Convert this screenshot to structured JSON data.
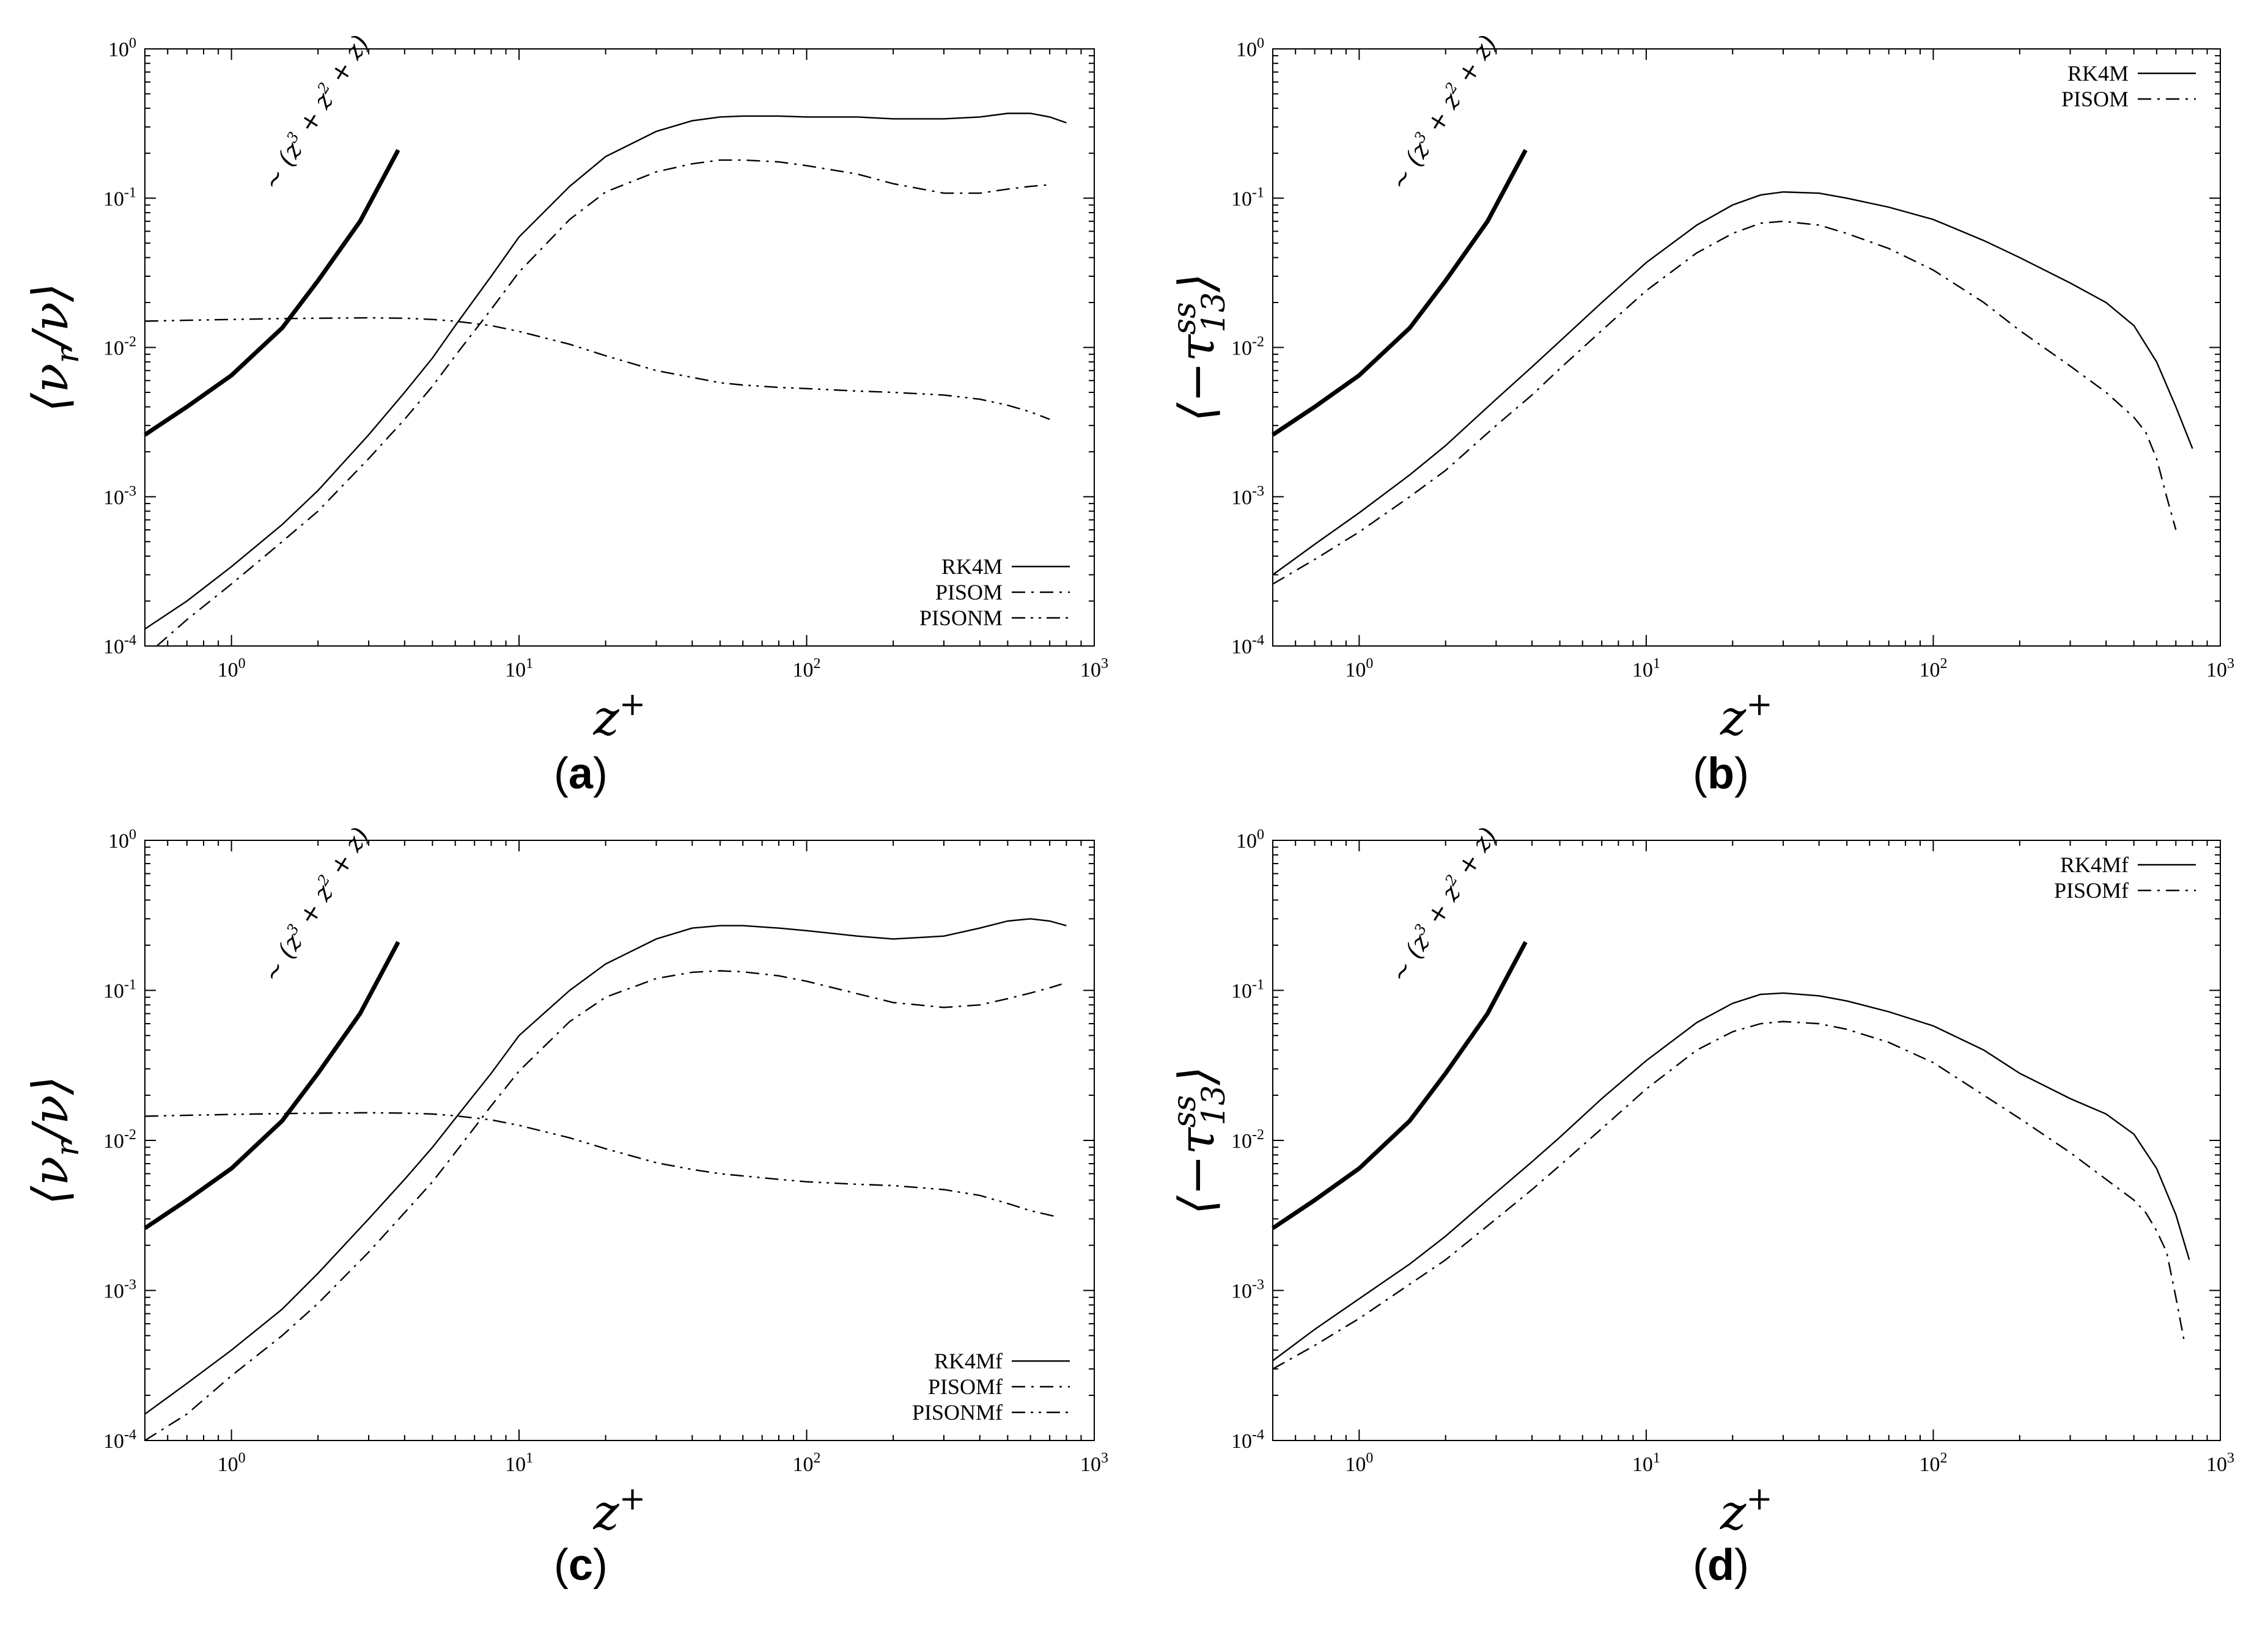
{
  "chart_data": [
    {
      "id": "a",
      "type": "line",
      "panel_label": "a",
      "xscale": "log",
      "yscale": "log",
      "xlim": [
        0.5,
        1000
      ],
      "ylim": [
        0.0001,
        1
      ],
      "xlabel": "z+",
      "xlabel_base": "z",
      "xlabel_sup": "+",
      "ylabel": "⟨νr/ν⟩",
      "ylabel_pre": "⟨ν",
      "ylabel_sub": "r",
      "ylabel_post": "/ν⟩",
      "xticks": [
        {
          "base": "10",
          "exp": "0",
          "value": 1
        },
        {
          "base": "10",
          "exp": "1",
          "value": 10
        },
        {
          "base": "10",
          "exp": "2",
          "value": 100
        },
        {
          "base": "10",
          "exp": "3",
          "value": 1000
        }
      ],
      "yticks": [
        {
          "base": "10",
          "exp": "-4",
          "value": 0.0001
        },
        {
          "base": "10",
          "exp": "-3",
          "value": 0.001
        },
        {
          "base": "10",
          "exp": "-2",
          "value": 0.01
        },
        {
          "base": "10",
          "exp": "-1",
          "value": 0.1
        },
        {
          "base": "10",
          "exp": "0",
          "value": 1
        }
      ],
      "legend_position": "bottom-right",
      "slope": {
        "label_pre": "∼ (z",
        "label_sup1": "3",
        "label_mid": " + z",
        "label_sup2": "2",
        "label_post": " + z)",
        "x": [
          0.5,
          0.7,
          1,
          1.5,
          2,
          2.8,
          3.8
        ],
        "y": [
          0.0026,
          0.004,
          0.0065,
          0.0135,
          0.028,
          0.07,
          0.21
        ]
      },
      "series": [
        {
          "name": "RK4M",
          "style": "solid",
          "x": [
            0.5,
            0.7,
            1,
            1.5,
            2,
            3,
            4,
            5,
            6,
            8,
            10,
            15,
            20,
            30,
            40,
            50,
            60,
            80,
            100,
            150,
            200,
            300,
            400,
            500,
            600,
            700,
            800
          ],
          "y": [
            0.00013,
            0.0002,
            0.00034,
            0.00065,
            0.0011,
            0.0026,
            0.005,
            0.0085,
            0.014,
            0.03,
            0.055,
            0.12,
            0.19,
            0.28,
            0.33,
            0.35,
            0.355,
            0.355,
            0.35,
            0.35,
            0.34,
            0.34,
            0.35,
            0.37,
            0.37,
            0.35,
            0.32
          ]
        },
        {
          "name": "PISOM",
          "style": "dashdot",
          "x": [
            0.55,
            0.7,
            1,
            1.5,
            2,
            3,
            4,
            5,
            6,
            8,
            10,
            15,
            20,
            30,
            40,
            50,
            60,
            80,
            100,
            150,
            200,
            300,
            400,
            500,
            600,
            700
          ],
          "y": [
            0.0001,
            0.00015,
            0.00026,
            0.0005,
            0.0008,
            0.0018,
            0.0033,
            0.0055,
            0.0088,
            0.018,
            0.032,
            0.072,
            0.11,
            0.15,
            0.17,
            0.18,
            0.18,
            0.175,
            0.165,
            0.145,
            0.125,
            0.108,
            0.108,
            0.115,
            0.12,
            0.123
          ]
        },
        {
          "name": "PISONM",
          "style": "dashdotdot",
          "x": [
            0.5,
            0.7,
            1,
            1.5,
            2,
            3,
            4,
            5,
            6,
            8,
            10,
            15,
            20,
            30,
            40,
            50,
            60,
            80,
            100,
            150,
            200,
            300,
            400,
            500,
            600,
            700
          ],
          "y": [
            0.015,
            0.0152,
            0.0154,
            0.0156,
            0.0157,
            0.0158,
            0.0157,
            0.0154,
            0.015,
            0.014,
            0.0128,
            0.0105,
            0.0088,
            0.007,
            0.0063,
            0.0058,
            0.0056,
            0.0054,
            0.0053,
            0.0051,
            0.005,
            0.0048,
            0.0045,
            0.0041,
            0.0037,
            0.0033
          ]
        }
      ]
    },
    {
      "id": "b",
      "type": "line",
      "panel_label": "b",
      "xscale": "log",
      "yscale": "log",
      "xlim": [
        0.5,
        1000
      ],
      "ylim": [
        0.0001,
        1
      ],
      "xlabel": "z+",
      "xlabel_base": "z",
      "xlabel_sup": "+",
      "ylabel": "⟨−τ13ss⟩",
      "ylabel_pre": "⟨−τ",
      "ylabel_sub": "13",
      "ylabel_sup": "ss",
      "ylabel_post": "⟩",
      "xticks": [
        {
          "base": "10",
          "exp": "0",
          "value": 1
        },
        {
          "base": "10",
          "exp": "1",
          "value": 10
        },
        {
          "base": "10",
          "exp": "2",
          "value": 100
        },
        {
          "base": "10",
          "exp": "3",
          "value": 1000
        }
      ],
      "yticks": [
        {
          "base": "10",
          "exp": "-4",
          "value": 0.0001
        },
        {
          "base": "10",
          "exp": "-3",
          "value": 0.001
        },
        {
          "base": "10",
          "exp": "-2",
          "value": 0.01
        },
        {
          "base": "10",
          "exp": "-1",
          "value": 0.1
        },
        {
          "base": "10",
          "exp": "0",
          "value": 1
        }
      ],
      "legend_position": "top-right",
      "slope": {
        "label_pre": "∼ (z",
        "label_sup1": "3",
        "label_mid": " + z",
        "label_sup2": "2",
        "label_post": " + z)",
        "x": [
          0.5,
          0.7,
          1,
          1.5,
          2,
          2.8,
          3.8
        ],
        "y": [
          0.0026,
          0.004,
          0.0065,
          0.0135,
          0.028,
          0.07,
          0.21
        ]
      },
      "series": [
        {
          "name": "RK4M",
          "style": "solid",
          "x": [
            0.5,
            0.7,
            1,
            1.5,
            2,
            3,
            4,
            5,
            7,
            10,
            15,
            20,
            25,
            30,
            40,
            50,
            70,
            100,
            150,
            200,
            300,
            400,
            500,
            600,
            700,
            800
          ],
          "y": [
            0.0003,
            0.00048,
            0.00078,
            0.0014,
            0.0022,
            0.0045,
            0.0074,
            0.011,
            0.02,
            0.037,
            0.066,
            0.09,
            0.105,
            0.11,
            0.108,
            0.1,
            0.087,
            0.072,
            0.052,
            0.04,
            0.027,
            0.02,
            0.014,
            0.008,
            0.004,
            0.0021
          ]
        },
        {
          "name": "PISOM",
          "style": "dashdot",
          "x": [
            0.5,
            0.7,
            1,
            1.5,
            2,
            3,
            4,
            5,
            7,
            10,
            15,
            20,
            25,
            30,
            40,
            50,
            70,
            100,
            150,
            200,
            300,
            400,
            500,
            550,
            600,
            650,
            700
          ],
          "y": [
            0.00026,
            0.00038,
            0.00058,
            0.001,
            0.0015,
            0.003,
            0.0048,
            0.0072,
            0.013,
            0.024,
            0.043,
            0.058,
            0.068,
            0.07,
            0.066,
            0.058,
            0.046,
            0.033,
            0.02,
            0.013,
            0.0075,
            0.005,
            0.0034,
            0.0027,
            0.0018,
            0.001,
            0.0006
          ]
        }
      ]
    },
    {
      "id": "c",
      "type": "line",
      "panel_label": "c",
      "xscale": "log",
      "yscale": "log",
      "xlim": [
        0.5,
        1000
      ],
      "ylim": [
        0.0001,
        1
      ],
      "xlabel": "z+",
      "xlabel_base": "z",
      "xlabel_sup": "+",
      "ylabel": "⟨νr/ν⟩",
      "ylabel_pre": "⟨ν",
      "ylabel_sub": "r",
      "ylabel_post": "/ν⟩",
      "xticks": [
        {
          "base": "10",
          "exp": "0",
          "value": 1
        },
        {
          "base": "10",
          "exp": "1",
          "value": 10
        },
        {
          "base": "10",
          "exp": "2",
          "value": 100
        },
        {
          "base": "10",
          "exp": "3",
          "value": 1000
        }
      ],
      "yticks": [
        {
          "base": "10",
          "exp": "-4",
          "value": 0.0001
        },
        {
          "base": "10",
          "exp": "-3",
          "value": 0.001
        },
        {
          "base": "10",
          "exp": "-2",
          "value": 0.01
        },
        {
          "base": "10",
          "exp": "-1",
          "value": 0.1
        },
        {
          "base": "10",
          "exp": "0",
          "value": 1
        }
      ],
      "legend_position": "bottom-right",
      "slope": {
        "label_pre": "∼ (z",
        "label_sup1": "3",
        "label_mid": " + z",
        "label_sup2": "2",
        "label_post": " + z)",
        "x": [
          0.5,
          0.7,
          1,
          1.5,
          2,
          2.8,
          3.8
        ],
        "y": [
          0.0026,
          0.004,
          0.0065,
          0.0135,
          0.028,
          0.07,
          0.21
        ]
      },
      "series": [
        {
          "name": "RK4Mf",
          "style": "solid",
          "x": [
            0.5,
            0.7,
            1,
            1.5,
            2,
            3,
            4,
            5,
            6,
            8,
            10,
            15,
            20,
            30,
            40,
            50,
            60,
            80,
            100,
            150,
            200,
            300,
            400,
            500,
            600,
            700,
            800
          ],
          "y": [
            0.00015,
            0.00024,
            0.0004,
            0.00075,
            0.0013,
            0.003,
            0.0055,
            0.009,
            0.014,
            0.028,
            0.05,
            0.1,
            0.15,
            0.22,
            0.26,
            0.27,
            0.27,
            0.26,
            0.25,
            0.23,
            0.22,
            0.23,
            0.26,
            0.29,
            0.3,
            0.29,
            0.27
          ]
        },
        {
          "name": "PISOMf",
          "style": "dashdot",
          "x": [
            0.5,
            0.7,
            1,
            1.5,
            2,
            3,
            4,
            5,
            6,
            8,
            10,
            15,
            20,
            30,
            40,
            50,
            60,
            80,
            100,
            150,
            200,
            300,
            400,
            500,
            600,
            700,
            770
          ],
          "y": [
            0.0001,
            0.00015,
            0.00027,
            0.0005,
            0.00082,
            0.0018,
            0.0033,
            0.0053,
            0.0083,
            0.017,
            0.029,
            0.062,
            0.09,
            0.12,
            0.132,
            0.135,
            0.133,
            0.125,
            0.115,
            0.095,
            0.083,
            0.077,
            0.08,
            0.088,
            0.096,
            0.104,
            0.11
          ]
        },
        {
          "name": "PISONMf",
          "style": "dashdotdot",
          "x": [
            0.5,
            0.7,
            1,
            1.5,
            2,
            3,
            4,
            5,
            6,
            8,
            10,
            15,
            20,
            30,
            40,
            50,
            60,
            80,
            100,
            150,
            200,
            300,
            400,
            500,
            600,
            740
          ],
          "y": [
            0.0145,
            0.0147,
            0.0149,
            0.0151,
            0.0152,
            0.0153,
            0.0152,
            0.015,
            0.0146,
            0.0137,
            0.0126,
            0.0104,
            0.0088,
            0.0071,
            0.0064,
            0.006,
            0.0058,
            0.0055,
            0.0053,
            0.0051,
            0.005,
            0.0047,
            0.0043,
            0.0038,
            0.0034,
            0.0031
          ]
        }
      ]
    },
    {
      "id": "d",
      "type": "line",
      "panel_label": "d",
      "xscale": "log",
      "yscale": "log",
      "xlim": [
        0.5,
        1000
      ],
      "ylim": [
        0.0001,
        1
      ],
      "xlabel": "z+",
      "xlabel_base": "z",
      "xlabel_sup": "+",
      "ylabel": "⟨−τ13ss⟩",
      "ylabel_pre": "⟨−τ",
      "ylabel_sub": "13",
      "ylabel_sup": "ss",
      "ylabel_post": "⟩",
      "xticks": [
        {
          "base": "10",
          "exp": "0",
          "value": 1
        },
        {
          "base": "10",
          "exp": "1",
          "value": 10
        },
        {
          "base": "10",
          "exp": "2",
          "value": 100
        },
        {
          "base": "10",
          "exp": "3",
          "value": 1000
        }
      ],
      "yticks": [
        {
          "base": "10",
          "exp": "-4",
          "value": 0.0001
        },
        {
          "base": "10",
          "exp": "-3",
          "value": 0.001
        },
        {
          "base": "10",
          "exp": "-2",
          "value": 0.01
        },
        {
          "base": "10",
          "exp": "-1",
          "value": 0.1
        },
        {
          "base": "10",
          "exp": "0",
          "value": 1
        }
      ],
      "legend_position": "top-right",
      "slope": {
        "label_pre": "∼ (z",
        "label_sup1": "3",
        "label_mid": " + z",
        "label_sup2": "2",
        "label_post": " + z)",
        "x": [
          0.5,
          0.7,
          1,
          1.5,
          2,
          2.8,
          3.8
        ],
        "y": [
          0.0026,
          0.004,
          0.0065,
          0.0135,
          0.028,
          0.07,
          0.21
        ]
      },
      "series": [
        {
          "name": "RK4Mf",
          "style": "solid",
          "x": [
            0.5,
            0.7,
            1,
            1.5,
            2,
            3,
            4,
            5,
            7,
            10,
            15,
            20,
            25,
            30,
            40,
            50,
            70,
            100,
            150,
            200,
            300,
            400,
            500,
            600,
            700,
            780
          ],
          "y": [
            0.00034,
            0.00055,
            0.00088,
            0.0015,
            0.0023,
            0.0045,
            0.0072,
            0.0105,
            0.019,
            0.034,
            0.061,
            0.082,
            0.094,
            0.096,
            0.092,
            0.085,
            0.072,
            0.058,
            0.04,
            0.028,
            0.019,
            0.015,
            0.011,
            0.0065,
            0.0032,
            0.0016
          ]
        },
        {
          "name": "PISOMf",
          "style": "dashdot",
          "x": [
            0.5,
            0.7,
            1,
            1.5,
            2,
            3,
            4,
            5,
            7,
            10,
            15,
            20,
            25,
            30,
            40,
            50,
            70,
            100,
            150,
            200,
            300,
            400,
            500,
            550,
            600,
            650,
            700,
            750
          ],
          "y": [
            0.0003,
            0.00043,
            0.00065,
            0.0011,
            0.0016,
            0.003,
            0.0047,
            0.0068,
            0.012,
            0.022,
            0.04,
            0.053,
            0.06,
            0.062,
            0.06,
            0.055,
            0.045,
            0.033,
            0.02,
            0.014,
            0.0083,
            0.0055,
            0.004,
            0.0033,
            0.0025,
            0.0018,
            0.0009,
            0.00045
          ]
        }
      ]
    }
  ]
}
